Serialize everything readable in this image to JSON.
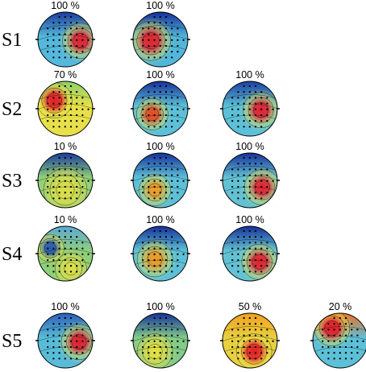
{
  "rows": [
    {
      "label": "S1",
      "maps": [
        {
          "pct": "100 %",
          "bg": "#55b8dc",
          "top": "#1c3c9c",
          "blobs": [
            {
              "dx": 0.55,
              "dy": 0.05,
              "r": 0.45,
              "c": "#e8202a"
            }
          ]
        },
        {
          "pct": "100 %",
          "bg": "#52b6da",
          "top": "#16309a",
          "blobs": [
            {
              "dx": -0.35,
              "dy": 0.05,
              "r": 0.5,
              "c": "#e8222a"
            }
          ]
        }
      ]
    },
    {
      "label": "S2",
      "maps": [
        {
          "pct": "70 %",
          "bg": "#e8e04a",
          "top": "#8ad06a",
          "blobs": [
            {
              "dx": -0.4,
              "dy": -0.3,
              "r": 0.45,
              "c": "#e41c28"
            }
          ]
        },
        {
          "pct": "100 %",
          "bg": "#5cc0d8",
          "top": "#16309a",
          "blobs": [
            {
              "dx": -0.3,
              "dy": 0.2,
              "r": 0.4,
              "c": "#ea4a1c"
            }
          ]
        },
        {
          "pct": "100 %",
          "bg": "#5cc0d8",
          "top": "#1c3ea0",
          "blobs": [
            {
              "dx": 0.4,
              "dy": 0.05,
              "r": 0.45,
              "c": "#e6202a"
            }
          ]
        }
      ]
    },
    {
      "label": "S3",
      "maps": [
        {
          "pct": "10 %",
          "bg": "#8ed07a",
          "top": "#1a3a9c",
          "blobs": [
            {
              "dx": 0.0,
              "dy": 0.35,
              "r": 0.55,
              "c": "#dede48"
            }
          ]
        },
        {
          "pct": "100 %",
          "bg": "#5cc0d8",
          "top": "#16309a",
          "blobs": [
            {
              "dx": -0.2,
              "dy": 0.35,
              "r": 0.4,
              "c": "#f09a20"
            }
          ]
        },
        {
          "pct": "100 %",
          "bg": "#62c2d4",
          "top": "#16309a",
          "blobs": [
            {
              "dx": 0.45,
              "dy": 0.25,
              "r": 0.45,
              "c": "#e6222a"
            }
          ]
        }
      ]
    },
    {
      "label": "S4",
      "maps": [
        {
          "pct": "10 %",
          "bg": "#8ed07a",
          "top": "#5aa8d8",
          "blobs": [
            {
              "dx": -0.55,
              "dy": -0.2,
              "r": 0.35,
              "c": "#2a58b0"
            },
            {
              "dx": 0.2,
              "dy": 0.55,
              "r": 0.4,
              "c": "#dede48"
            }
          ]
        },
        {
          "pct": "100 %",
          "bg": "#5cc0d8",
          "top": "#16309a",
          "blobs": [
            {
              "dx": -0.2,
              "dy": 0.2,
              "r": 0.45,
              "c": "#f09a20"
            }
          ]
        },
        {
          "pct": "100 %",
          "bg": "#62c2d4",
          "top": "#16309a",
          "blobs": [
            {
              "dx": 0.35,
              "dy": 0.3,
              "r": 0.45,
              "c": "#e6202a"
            }
          ]
        }
      ]
    },
    {
      "label": "S5",
      "maps": [
        {
          "pct": "100 %",
          "bg": "#58bcd8",
          "top": "#2a60b8",
          "blobs": [
            {
              "dx": 0.5,
              "dy": 0.05,
              "r": 0.45,
              "c": "#e41e28"
            }
          ]
        },
        {
          "pct": "100 %",
          "bg": "#82cc8a",
          "top": "#16309a",
          "blobs": [
            {
              "dx": -0.2,
              "dy": 0.4,
              "r": 0.45,
              "c": "#e6e040"
            }
          ]
        },
        {
          "pct": "50 %",
          "bg": "#e8d040",
          "top": "#f0a020",
          "blobs": [
            {
              "dx": 0.15,
              "dy": 0.4,
              "r": 0.45,
              "c": "#e41e28"
            }
          ]
        },
        {
          "pct": "20 %",
          "bg": "#5cc0d8",
          "top": "#f07020",
          "blobs": [
            {
              "dx": -0.3,
              "dy": -0.45,
              "r": 0.45,
              "c": "#e61c28"
            }
          ]
        }
      ]
    }
  ]
}
